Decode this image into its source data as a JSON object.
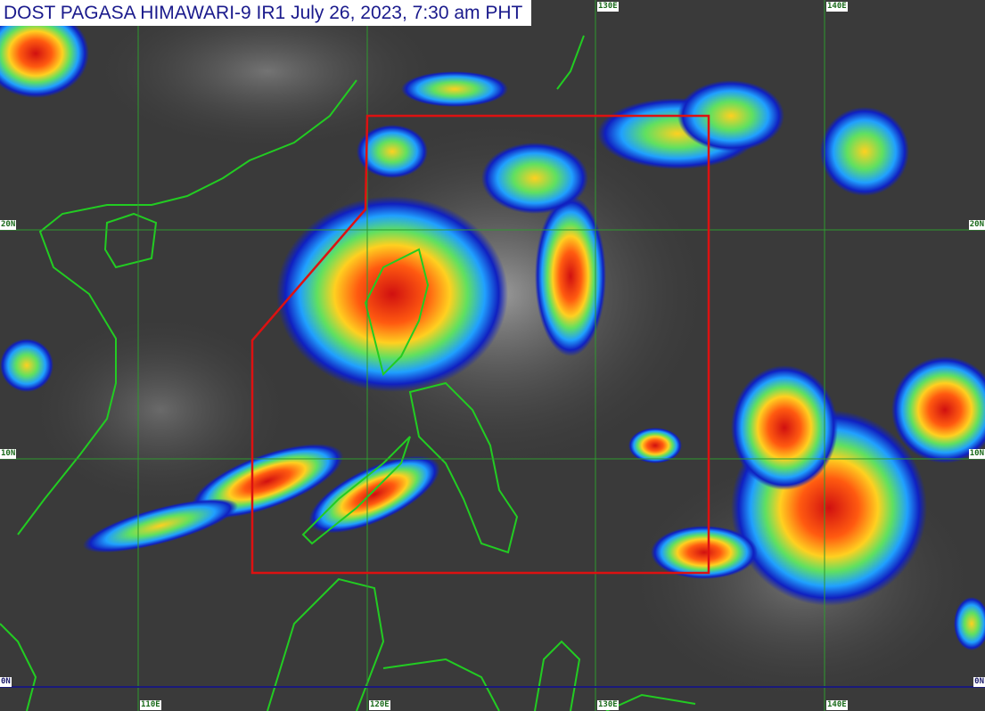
{
  "title": "DOST PAGASA HIMAWARI-9 IR1 July 26, 2023, 7:30 am PHT",
  "grid": {
    "longitudes": [
      "110E",
      "120E",
      "130E",
      "140E"
    ],
    "latitudes": [
      "20N",
      "10N",
      "0N"
    ]
  },
  "colors": {
    "background": "#3a3a3a",
    "coastline": "#22cc22",
    "gridline": "#33aa33",
    "equator": "#1a1a7a",
    "par_boundary": "#dd1111",
    "title_text": "#1a1a8c"
  }
}
